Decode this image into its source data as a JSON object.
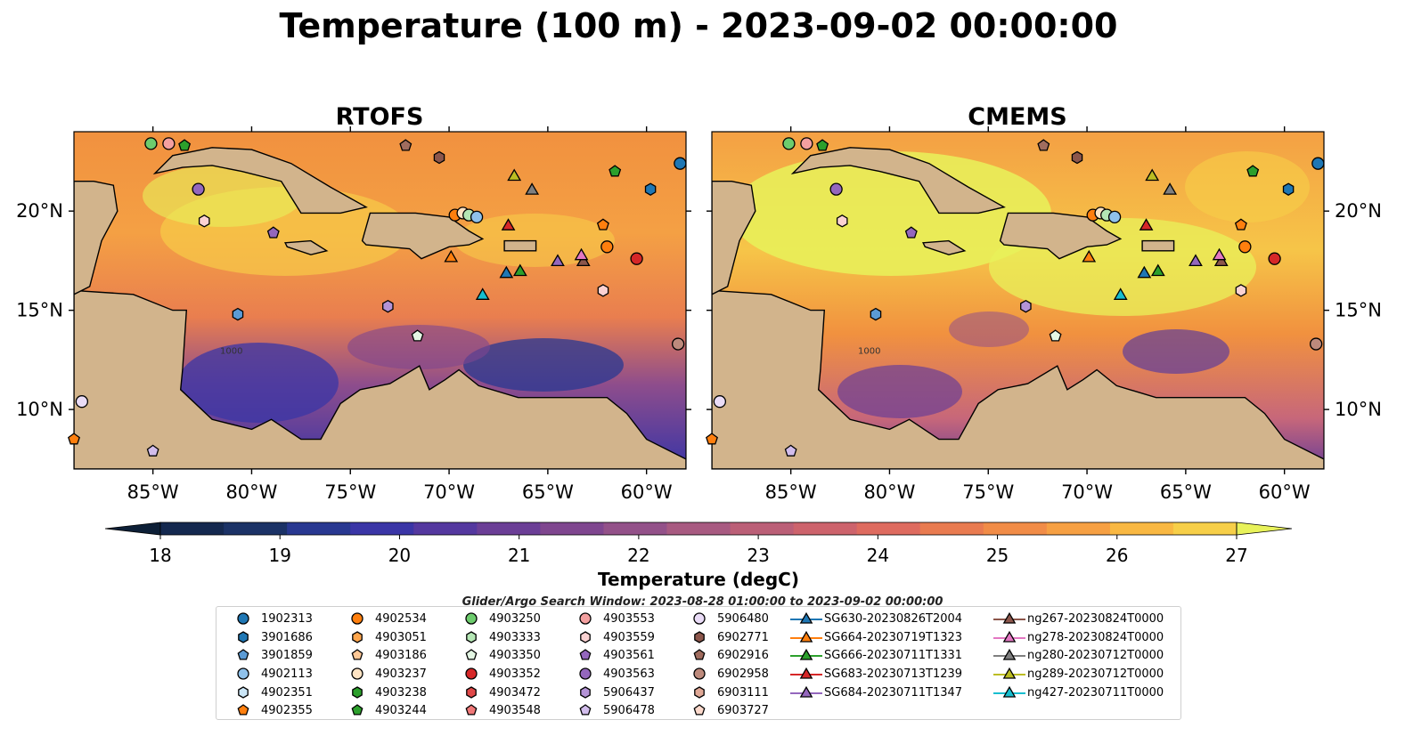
{
  "figure": {
    "title": "Temperature (100 m) - 2023-09-02 00:00:00",
    "search_window": "Glider/Argo Search Window: 2023-08-28 01:00:00 to 2023-09-02 00:00:00"
  },
  "panels": [
    {
      "title": "RTOFS"
    },
    {
      "title": "CMEMS"
    }
  ],
  "map_axes": {
    "lon_ticks": [
      "85°W",
      "80°W",
      "75°W",
      "70°W",
      "65°W",
      "60°W"
    ],
    "lat_ticks": [
      "20°N",
      "15°N",
      "10°N"
    ],
    "lon_range": [
      -89,
      -58
    ],
    "lat_range": [
      7,
      24
    ],
    "contour_label": "1000"
  },
  "colorbar": {
    "label": "Temperature (degC)",
    "ticks": [
      "18",
      "19",
      "20",
      "21",
      "22",
      "23",
      "24",
      "25",
      "26",
      "27"
    ],
    "range": [
      18,
      27
    ],
    "extend": "both",
    "colors": [
      "#0d1f37",
      "#14284f",
      "#1b3266",
      "#283891",
      "#3a35a6",
      "#54389f",
      "#6b3e96",
      "#7f468f",
      "#935189",
      "#a85a81",
      "#bb5f77",
      "#cd636c",
      "#de6b5f",
      "#e97b50",
      "#f18c47",
      "#f6a043",
      "#f9b842",
      "#f7cf48",
      "#e8f25a"
    ]
  },
  "legend": {
    "columns": [
      [
        {
          "label": "1902313",
          "marker": "circle",
          "color": "#1f77b4"
        },
        {
          "label": "3901686",
          "marker": "hexagon",
          "color": "#1f77b4"
        },
        {
          "label": "3901859",
          "marker": "pentagon",
          "color": "#5b9bd5"
        },
        {
          "label": "4902113",
          "marker": "circle",
          "color": "#8fc1ea"
        },
        {
          "label": "4902351",
          "marker": "hexagon",
          "color": "#cbe6f7"
        },
        {
          "label": "4902355",
          "marker": "pentagon",
          "color": "#ff7f0e"
        }
      ],
      [
        {
          "label": "4902534",
          "marker": "circle",
          "color": "#ff7f0e"
        },
        {
          "label": "4903051",
          "marker": "hexagon",
          "color": "#ffa64d"
        },
        {
          "label": "4903186",
          "marker": "pentagon",
          "color": "#ffc896"
        },
        {
          "label": "4903237",
          "marker": "circle",
          "color": "#ffe4c4"
        },
        {
          "label": "4903238",
          "marker": "hexagon",
          "color": "#2ca02c"
        },
        {
          "label": "4903244",
          "marker": "pentagon",
          "color": "#2ca02c"
        }
      ],
      [
        {
          "label": "4903250",
          "marker": "circle",
          "color": "#6dcc6d"
        },
        {
          "label": "4903333",
          "marker": "hexagon",
          "color": "#b4e6b4"
        },
        {
          "label": "4903350",
          "marker": "pentagon",
          "color": "#e4f7e4"
        },
        {
          "label": "4903352",
          "marker": "circle",
          "color": "#d62728"
        },
        {
          "label": "4903472",
          "marker": "hexagon",
          "color": "#e04848"
        },
        {
          "label": "4903548",
          "marker": "pentagon",
          "color": "#f07878"
        }
      ],
      [
        {
          "label": "4903553",
          "marker": "circle",
          "color": "#f4a0a0"
        },
        {
          "label": "4903559",
          "marker": "hexagon",
          "color": "#fbd2d2"
        },
        {
          "label": "4903561",
          "marker": "pentagon",
          "color": "#9467bd"
        },
        {
          "label": "4903563",
          "marker": "circle",
          "color": "#9467bd"
        },
        {
          "label": "5906437",
          "marker": "hexagon",
          "color": "#b493d6"
        },
        {
          "label": "5906478",
          "marker": "pentagon",
          "color": "#d2bdec"
        }
      ],
      [
        {
          "label": "5906480",
          "marker": "circle",
          "color": "#eadcf7"
        },
        {
          "label": "6902771",
          "marker": "hexagon",
          "color": "#8c564b"
        },
        {
          "label": "6902916",
          "marker": "pentagon",
          "color": "#a06c5e"
        },
        {
          "label": "6902958",
          "marker": "circle",
          "color": "#bd8a7c"
        },
        {
          "label": "6903111",
          "marker": "hexagon",
          "color": "#e0a896"
        },
        {
          "label": "6903727",
          "marker": "pentagon",
          "color": "#fcd9cc"
        }
      ],
      [
        {
          "label": "SG630-20230826T2004",
          "marker": "triangle",
          "color": "#1f77b4"
        },
        {
          "label": "SG664-20230719T1323",
          "marker": "triangle",
          "color": "#ff7f0e"
        },
        {
          "label": "SG666-20230711T1331",
          "marker": "triangle",
          "color": "#2ca02c"
        },
        {
          "label": "SG683-20230713T1239",
          "marker": "triangle",
          "color": "#d62728"
        },
        {
          "label": "SG684-20230711T1347",
          "marker": "triangle",
          "color": "#9467bd"
        }
      ],
      [
        {
          "label": "ng267-20230824T0000",
          "marker": "triangle",
          "color": "#8c564b"
        },
        {
          "label": "ng278-20230824T0000",
          "marker": "triangle",
          "color": "#e377c2"
        },
        {
          "label": "ng280-20230712T0000",
          "marker": "triangle",
          "color": "#7f7f7f"
        },
        {
          "label": "ng289-20230712T0000",
          "marker": "triangle",
          "color": "#bcbd22"
        },
        {
          "label": "ng427-20230711T0000",
          "marker": "triangle",
          "color": "#17becf"
        }
      ]
    ]
  },
  "observations": [
    {
      "marker": "circle",
      "color": "#1f77b4",
      "lon": -58.3,
      "lat": 22.4
    },
    {
      "marker": "hexagon",
      "color": "#1f77b4",
      "lon": -59.8,
      "lat": 21.1
    },
    {
      "marker": "pentagon",
      "color": "#2ca02c",
      "lon": -61.6,
      "lat": 22.0
    },
    {
      "marker": "pentagon",
      "color": "#2ca02c",
      "lon": -83.4,
      "lat": 23.3
    },
    {
      "marker": "circle",
      "color": "#6dcc6d",
      "lon": -85.1,
      "lat": 23.4
    },
    {
      "marker": "circle",
      "color": "#f4a0a0",
      "lon": -84.2,
      "lat": 23.4
    },
    {
      "marker": "pentagon",
      "color": "#a06c5e",
      "lon": -72.2,
      "lat": 23.3
    },
    {
      "marker": "hexagon",
      "color": "#8c564b",
      "lon": -70.5,
      "lat": 22.7
    },
    {
      "marker": "circle",
      "color": "#9467bd",
      "lon": -82.7,
      "lat": 21.1
    },
    {
      "marker": "hexagon",
      "color": "#fbd2d2",
      "lon": -82.4,
      "lat": 19.5
    },
    {
      "marker": "pentagon",
      "color": "#9467bd",
      "lon": -78.9,
      "lat": 18.9
    },
    {
      "marker": "circle",
      "color": "#ff7f0e",
      "lon": -69.7,
      "lat": 19.8
    },
    {
      "marker": "circle",
      "color": "#ffe4c4",
      "lon": -69.3,
      "lat": 19.9
    },
    {
      "marker": "circle",
      "color": "#b4e6b4",
      "lon": -69.0,
      "lat": 19.8
    },
    {
      "marker": "circle",
      "color": "#8fc1ea",
      "lon": -68.6,
      "lat": 19.7
    },
    {
      "marker": "pentagon",
      "color": "#ff7f0e",
      "lon": -62.2,
      "lat": 19.3
    },
    {
      "marker": "circle",
      "color": "#ff7f0e",
      "lon": -62.0,
      "lat": 18.2
    },
    {
      "marker": "circle",
      "color": "#d62728",
      "lon": -60.5,
      "lat": 17.6
    },
    {
      "marker": "hexagon",
      "color": "#fbd2d2",
      "lon": -62.2,
      "lat": 16.0
    },
    {
      "marker": "hexagon",
      "color": "#5b9bd5",
      "lon": -80.7,
      "lat": 14.8
    },
    {
      "marker": "hexagon",
      "color": "#b493d6",
      "lon": -73.1,
      "lat": 15.2
    },
    {
      "marker": "pentagon",
      "color": "#e4f7e4",
      "lon": -71.6,
      "lat": 13.7
    },
    {
      "marker": "circle",
      "color": "#bd8a7c",
      "lon": -58.4,
      "lat": 13.3
    },
    {
      "marker": "circle",
      "color": "#eadcf7",
      "lon": -88.6,
      "lat": 10.4
    },
    {
      "marker": "pentagon",
      "color": "#ff7f0e",
      "lon": -89.0,
      "lat": 8.5
    },
    {
      "marker": "pentagon",
      "color": "#d2bdec",
      "lon": -85.0,
      "lat": 7.9
    },
    {
      "marker": "triangle",
      "color": "#bcbd22",
      "lon": -66.7,
      "lat": 21.8
    },
    {
      "marker": "triangle",
      "color": "#7f7f7f",
      "lon": -65.8,
      "lat": 21.1
    },
    {
      "marker": "triangle",
      "color": "#d62728",
      "lon": -67.0,
      "lat": 19.3
    },
    {
      "marker": "triangle",
      "color": "#ff7f0e",
      "lon": -69.9,
      "lat": 17.7
    },
    {
      "marker": "triangle",
      "color": "#1f77b4",
      "lon": -67.1,
      "lat": 16.9
    },
    {
      "marker": "triangle",
      "color": "#2ca02c",
      "lon": -66.4,
      "lat": 17.0
    },
    {
      "marker": "triangle",
      "color": "#9467bd",
      "lon": -64.5,
      "lat": 17.5
    },
    {
      "marker": "triangle",
      "color": "#8c564b",
      "lon": -63.2,
      "lat": 17.5
    },
    {
      "marker": "triangle",
      "color": "#e377c2",
      "lon": -63.3,
      "lat": 17.8
    },
    {
      "marker": "triangle",
      "color": "#17becf",
      "lon": -68.3,
      "lat": 15.8
    }
  ]
}
